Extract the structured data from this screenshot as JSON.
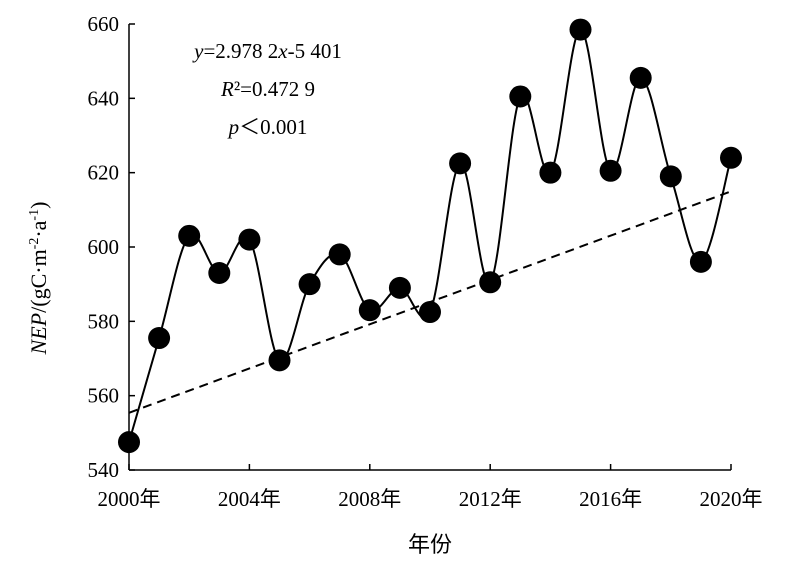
{
  "chart_data": {
    "type": "line",
    "xlabel": "年份",
    "ylabel_italic": "NEP",
    "ylabel_unit_prefix": "/(gC·m",
    "ylabel_sup1": "-2",
    "ylabel_unit_mid": "·a",
    "ylabel_sup2": "-1",
    "ylabel_unit_suffix": ")",
    "xlim": [
      2000,
      2020
    ],
    "ylim": [
      540,
      660
    ],
    "x_ticks": [
      2000,
      2004,
      2008,
      2012,
      2016,
      2020
    ],
    "x_tick_labels": [
      "2000年",
      "2004年",
      "2008年",
      "2012年",
      "2016年",
      "2020年"
    ],
    "y_ticks": [
      540,
      560,
      580,
      600,
      620,
      640,
      660
    ],
    "y_tick_labels": [
      "540",
      "560",
      "580",
      "600",
      "620",
      "640",
      "660"
    ],
    "x": [
      2000,
      2001,
      2002,
      2003,
      2004,
      2005,
      2006,
      2007,
      2008,
      2009,
      2010,
      2011,
      2012,
      2013,
      2014,
      2015,
      2016,
      2017,
      2018,
      2019,
      2020
    ],
    "y": [
      547.5,
      575.5,
      603,
      593,
      602,
      569.5,
      590,
      598,
      583,
      589,
      582.5,
      622.5,
      590.5,
      640.5,
      620,
      658.5,
      620.5,
      645.5,
      619,
      596,
      624
    ],
    "trend": {
      "slope": 2.9782,
      "intercept": -5401,
      "equation_y": "y",
      "equation_part1": "=2.978 2",
      "equation_x": "x",
      "equation_part2": "-5 401",
      "r2_italic": "R",
      "r2_rest": "²=0.472 9",
      "p_italic": "p",
      "p_rest": "＜0.001"
    },
    "grid": false,
    "legend": "none",
    "colors": {
      "marker": "#000000",
      "line": "#000000",
      "trend": "#000000"
    }
  }
}
